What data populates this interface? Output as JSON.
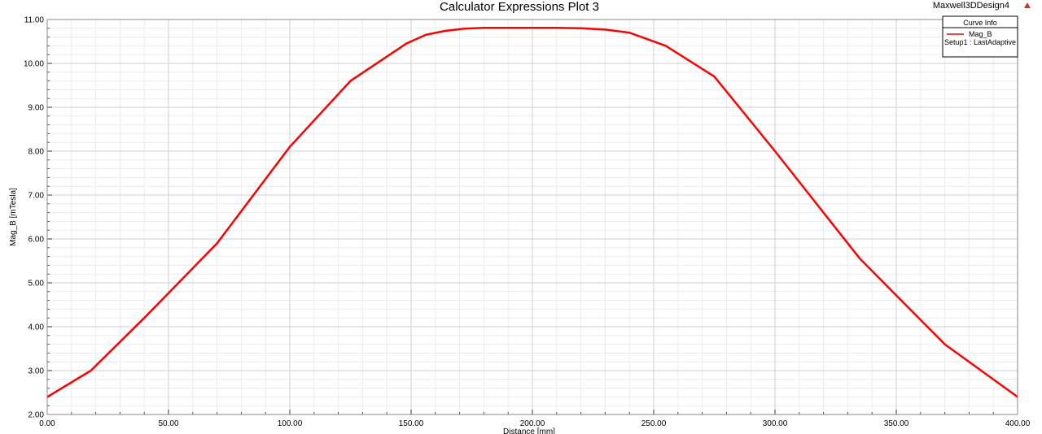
{
  "chart_data": {
    "type": "line",
    "title": "Calculator Expressions Plot 3",
    "design_name": "Maxwell3DDesign4",
    "xlabel": "Distance [mm]",
    "ylabel": "Mag_B [mTesla]",
    "xlim": [
      0,
      400
    ],
    "ylim": [
      2,
      11
    ],
    "x_ticks": [
      "0.00",
      "50.00",
      "100.00",
      "150.00",
      "200.00",
      "250.00",
      "300.00",
      "350.00",
      "400.00"
    ],
    "y_ticks": [
      "2.00",
      "3.00",
      "4.00",
      "5.00",
      "6.00",
      "7.00",
      "8.00",
      "9.00",
      "10.00",
      "11.00"
    ],
    "grid": true,
    "legend": {
      "title": "Curve Info",
      "placement": "top-right",
      "entries": [
        {
          "name": "Mag_B",
          "detail": "Setup1 : LastAdaptive"
        }
      ]
    },
    "series": [
      {
        "name": "Mag_B",
        "color": "#ff0000",
        "x": [
          0,
          18,
          40,
          70,
          100,
          125,
          148,
          156,
          164,
          172,
          180,
          190,
          200,
          210,
          220,
          230,
          240,
          255,
          275,
          300,
          335,
          370,
          400
        ],
        "y": [
          2.4,
          3.0,
          4.2,
          5.9,
          8.1,
          9.6,
          10.45,
          10.65,
          10.74,
          10.79,
          10.81,
          10.81,
          10.81,
          10.81,
          10.8,
          10.77,
          10.7,
          10.4,
          9.7,
          8.0,
          5.55,
          3.6,
          2.4
        ]
      }
    ]
  }
}
